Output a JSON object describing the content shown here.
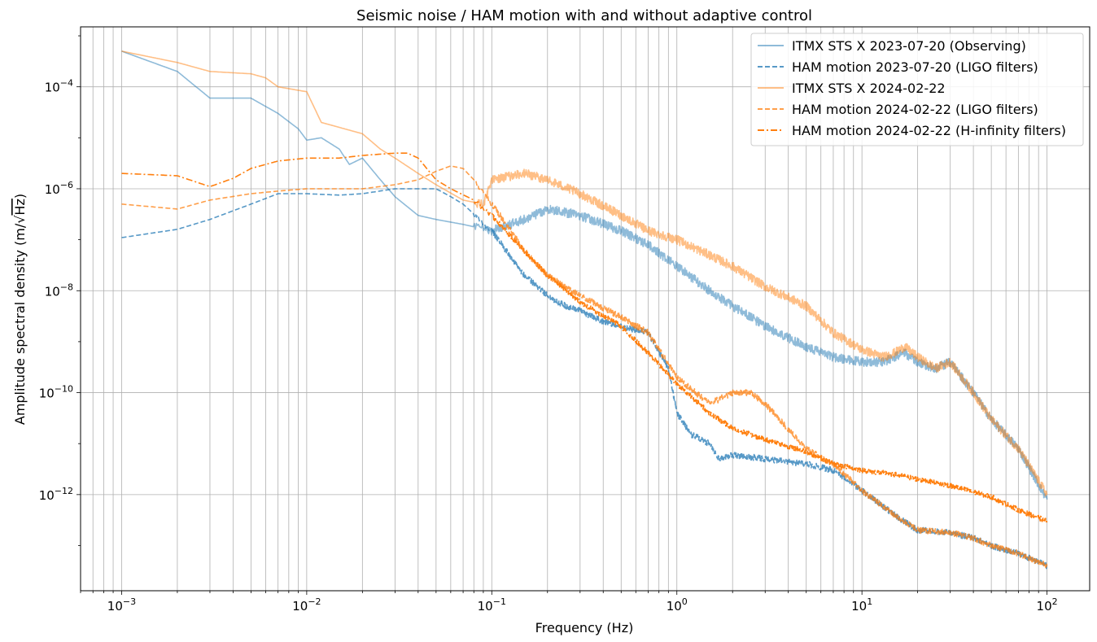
{
  "chart_data": {
    "type": "line",
    "title": "Seismic noise / HAM motion with and without adaptive control",
    "xlabel": "Frequency (Hz)",
    "ylabel_prefix": "Amplitude spectral density (m/",
    "ylabel_sqrt": "√",
    "ylabel_radicand": "Hz",
    "ylabel_suffix": ")",
    "xscale": "log",
    "yscale": "log",
    "xlim": [
      0.0006,
      170
    ],
    "ylim": [
      1.3e-14,
      0.0015
    ],
    "grid": true,
    "legend_position": "top-right",
    "xticks": [
      {
        "value": 0.001,
        "base": "10",
        "exp": "−3"
      },
      {
        "value": 0.01,
        "base": "10",
        "exp": "−2"
      },
      {
        "value": 0.1,
        "base": "10",
        "exp": "−1"
      },
      {
        "value": 1,
        "base": "10",
        "exp": "0"
      },
      {
        "value": 10,
        "base": "10",
        "exp": "1"
      },
      {
        "value": 100,
        "base": "10",
        "exp": "2"
      }
    ],
    "yticks": [
      {
        "value": 1e-12,
        "base": "10",
        "exp": "−12"
      },
      {
        "value": 1e-10,
        "base": "10",
        "exp": "−10"
      },
      {
        "value": 1e-08,
        "base": "10",
        "exp": "−8"
      },
      {
        "value": 1e-06,
        "base": "10",
        "exp": "−6"
      },
      {
        "value": 0.0001,
        "base": "10",
        "exp": "−4"
      }
    ],
    "series": [
      {
        "name": "ITMX STS X 2023-07-20 (Observing)",
        "color": "#1f77b4",
        "alpha": 0.5,
        "dash": "solid",
        "noise": 0.09,
        "x": [
          0.001,
          0.002,
          0.003,
          0.004,
          0.005,
          0.007,
          0.009,
          0.01,
          0.012,
          0.015,
          0.017,
          0.02,
          0.025,
          0.03,
          0.04,
          0.05,
          0.07,
          0.1,
          0.15,
          0.2,
          0.3,
          0.5,
          0.7,
          1,
          1.5,
          2,
          3,
          5,
          7,
          10,
          13,
          15,
          17,
          20,
          25,
          30,
          40,
          50,
          70,
          100
        ],
        "y": [
          0.0005,
          0.0002,
          6e-05,
          6e-05,
          6e-05,
          3e-05,
          1.5e-05,
          9e-06,
          1e-05,
          6e-06,
          3e-06,
          4e-06,
          1.5e-06,
          7e-07,
          3e-07,
          2.5e-07,
          2e-07,
          1.5e-07,
          2.5e-07,
          4e-07,
          3e-07,
          1.5e-07,
          8e-08,
          3e-08,
          1e-08,
          5e-09,
          2e-09,
          8e-10,
          5e-10,
          4e-10,
          4e-10,
          5e-10,
          6e-10,
          4e-10,
          3e-10,
          4e-10,
          1e-10,
          3e-11,
          8e-12,
          8e-13
        ]
      },
      {
        "name": "HAM motion 2023-07-20 (LIGO filters)",
        "color": "#1f77b4",
        "alpha": 0.75,
        "dash": "6,3",
        "noise": 0.06,
        "x": [
          0.001,
          0.002,
          0.003,
          0.005,
          0.007,
          0.01,
          0.015,
          0.02,
          0.03,
          0.04,
          0.05,
          0.06,
          0.07,
          0.1,
          0.12,
          0.15,
          0.2,
          0.25,
          0.3,
          0.4,
          0.5,
          0.7,
          0.9,
          1,
          1.2,
          1.5,
          1.7,
          2,
          3,
          5,
          7,
          10,
          15,
          20,
          30,
          40,
          50,
          70,
          100
        ],
        "y": [
          1.1e-07,
          1.6e-07,
          2.5e-07,
          5e-07,
          8e-07,
          8e-07,
          7.5e-07,
          8e-07,
          1e-06,
          1e-06,
          1e-06,
          7e-07,
          5e-07,
          1.5e-07,
          6e-08,
          2e-08,
          8e-09,
          5e-09,
          4e-09,
          2.5e-09,
          2e-09,
          1.5e-09,
          3e-10,
          4e-11,
          1.5e-11,
          1e-11,
          5e-12,
          6e-12,
          5e-12,
          4e-12,
          3e-12,
          1.2e-12,
          4e-13,
          2e-13,
          1.8e-13,
          1.4e-13,
          1e-13,
          7e-14,
          4e-14
        ]
      },
      {
        "name": "ITMX STS X 2024-02-22",
        "color": "#ff7f0e",
        "alpha": 0.5,
        "dash": "solid",
        "noise": 0.09,
        "x": [
          0.001,
          0.002,
          0.003,
          0.005,
          0.006,
          0.007,
          0.01,
          0.012,
          0.015,
          0.02,
          0.025,
          0.03,
          0.04,
          0.05,
          0.07,
          0.09,
          0.1,
          0.15,
          0.2,
          0.3,
          0.5,
          0.7,
          1,
          1.5,
          2,
          3,
          5,
          7,
          10,
          13,
          15,
          17,
          20,
          25,
          30,
          40,
          50,
          70,
          100
        ],
        "y": [
          0.0005,
          0.0003,
          0.0002,
          0.00018,
          0.00015,
          0.0001,
          8e-05,
          2e-05,
          1.6e-05,
          1.2e-05,
          6e-06,
          4e-06,
          2e-06,
          1.2e-06,
          6e-07,
          5e-07,
          1.5e-06,
          2e-06,
          1.5e-06,
          8e-07,
          3e-07,
          1.5e-07,
          1e-07,
          5e-08,
          3e-08,
          1.2e-08,
          5e-09,
          1.5e-09,
          7e-10,
          5e-10,
          6e-10,
          8e-10,
          5e-10,
          3e-10,
          4e-10,
          1e-10,
          3e-11,
          8e-12,
          1e-12
        ]
      },
      {
        "name": "HAM motion 2024-02-22 (LIGO filters)",
        "color": "#ff7f0e",
        "alpha": 0.75,
        "dash": "6,3",
        "noise": 0.06,
        "x": [
          0.001,
          0.002,
          0.003,
          0.005,
          0.007,
          0.01,
          0.015,
          0.02,
          0.03,
          0.04,
          0.05,
          0.06,
          0.07,
          0.08,
          0.1,
          0.12,
          0.15,
          0.2,
          0.3,
          0.5,
          0.7,
          1,
          1.5,
          2,
          2.5,
          3,
          5,
          7,
          10,
          15,
          20,
          30,
          40,
          50,
          70,
          100
        ],
        "y": [
          5e-07,
          4e-07,
          6e-07,
          8e-07,
          9e-07,
          1e-06,
          1e-06,
          1e-06,
          1.2e-06,
          1.5e-06,
          2.2e-06,
          2.8e-06,
          2.5e-06,
          1.5e-06,
          5e-07,
          2e-07,
          6e-08,
          2e-08,
          8e-09,
          3e-09,
          1.5e-09,
          2e-10,
          6e-11,
          1e-10,
          1e-10,
          6e-11,
          8e-12,
          4e-12,
          1.2e-12,
          4e-13,
          2e-13,
          1.8e-13,
          1.4e-13,
          1e-13,
          7e-14,
          4e-14
        ]
      },
      {
        "name": "HAM motion 2024-02-22 (H-infinity filters)",
        "color": "#ff7f0e",
        "alpha": 1,
        "dash": "8,3,2,3",
        "noise": 0.05,
        "x": [
          0.001,
          0.002,
          0.003,
          0.004,
          0.005,
          0.007,
          0.01,
          0.015,
          0.02,
          0.03,
          0.035,
          0.04,
          0.05,
          0.06,
          0.08,
          0.1,
          0.15,
          0.2,
          0.3,
          0.5,
          0.7,
          1,
          1.5,
          2,
          3,
          5,
          7,
          10,
          15,
          20,
          30,
          50,
          70,
          100
        ],
        "y": [
          2e-06,
          1.8e-06,
          1.1e-06,
          1.6e-06,
          2.5e-06,
          3.5e-06,
          4e-06,
          4e-06,
          4.5e-06,
          5e-06,
          5e-06,
          4e-06,
          1.5e-06,
          1e-06,
          6e-07,
          3e-07,
          6e-08,
          2e-08,
          6e-09,
          2e-09,
          6e-10,
          1.5e-10,
          4e-11,
          2e-11,
          1.2e-11,
          7e-12,
          4e-12,
          3e-12,
          2.5e-12,
          2e-12,
          1.5e-12,
          9e-13,
          5e-13,
          3e-13
        ]
      }
    ]
  }
}
